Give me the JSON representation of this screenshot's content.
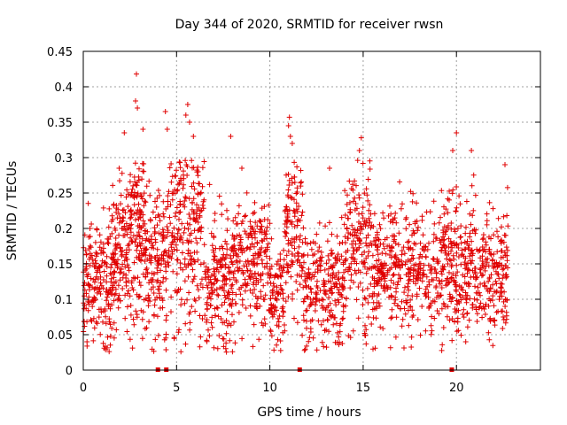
{
  "chart_data": {
    "type": "scatter",
    "title": "Day 344 of 2020, SRMTID for receiver rwsn",
    "xlabel": "GPS time / hours",
    "ylabel": "SRMTID / TECUs",
    "xlim": [
      0,
      24.5
    ],
    "ylim": [
      0,
      0.45
    ],
    "x_ticks": [
      0,
      5,
      10,
      15,
      20
    ],
    "x_tick_labels": [
      "0",
      "5",
      "10",
      "15",
      "20"
    ],
    "y_ticks": [
      0,
      0.05,
      0.1,
      0.15,
      0.2,
      0.25,
      0.3,
      0.35,
      0.4,
      0.45
    ],
    "y_tick_labels": [
      "0",
      "0.05",
      "0.1",
      "0.15",
      "0.2",
      "0.25",
      "0.3",
      "0.35",
      "0.4",
      "0.45"
    ],
    "grid": true,
    "marker": "plus",
    "color": "#e00000",
    "series": [
      {
        "name": "SRMTID",
        "points_note": "dense cloud of ~3000 points from 0 to 22.8 h, mostly 0.05–0.25 TECU",
        "density_profile": [
          {
            "x_from": 0.0,
            "x_to": 1.5,
            "center": 0.12,
            "spread": 0.045,
            "n": 180
          },
          {
            "x_from": 1.5,
            "x_to": 2.5,
            "center": 0.16,
            "spread": 0.05,
            "n": 140
          },
          {
            "x_from": 2.5,
            "x_to": 3.3,
            "center": 0.19,
            "spread": 0.07,
            "n": 130
          },
          {
            "x_from": 3.3,
            "x_to": 4.5,
            "center": 0.15,
            "spread": 0.05,
            "n": 150
          },
          {
            "x_from": 4.5,
            "x_to": 6.5,
            "center": 0.19,
            "spread": 0.065,
            "n": 230
          },
          {
            "x_from": 6.5,
            "x_to": 8.0,
            "center": 0.12,
            "spread": 0.045,
            "n": 170
          },
          {
            "x_from": 8.0,
            "x_to": 10.0,
            "center": 0.15,
            "spread": 0.045,
            "n": 220
          },
          {
            "x_from": 10.0,
            "x_to": 10.8,
            "center": 0.1,
            "spread": 0.04,
            "n": 90
          },
          {
            "x_from": 10.8,
            "x_to": 11.8,
            "center": 0.2,
            "spread": 0.06,
            "n": 120
          },
          {
            "x_from": 11.8,
            "x_to": 14.0,
            "center": 0.12,
            "spread": 0.04,
            "n": 230
          },
          {
            "x_from": 14.0,
            "x_to": 15.5,
            "center": 0.18,
            "spread": 0.055,
            "n": 160
          },
          {
            "x_from": 15.5,
            "x_to": 19.5,
            "center": 0.14,
            "spread": 0.045,
            "n": 420
          },
          {
            "x_from": 19.5,
            "x_to": 21.0,
            "center": 0.15,
            "spread": 0.05,
            "n": 180
          },
          {
            "x_from": 21.0,
            "x_to": 22.8,
            "center": 0.14,
            "spread": 0.045,
            "n": 190
          }
        ],
        "peaks": [
          {
            "x": 2.85,
            "y": 0.418
          },
          {
            "x": 2.8,
            "y": 0.38
          },
          {
            "x": 2.9,
            "y": 0.37
          },
          {
            "x": 4.4,
            "y": 0.365
          },
          {
            "x": 5.6,
            "y": 0.375
          },
          {
            "x": 5.5,
            "y": 0.36
          },
          {
            "x": 5.7,
            "y": 0.35
          },
          {
            "x": 5.9,
            "y": 0.33
          },
          {
            "x": 4.5,
            "y": 0.34
          },
          {
            "x": 2.2,
            "y": 0.335
          },
          {
            "x": 3.2,
            "y": 0.34
          },
          {
            "x": 7.9,
            "y": 0.33
          },
          {
            "x": 11.05,
            "y": 0.357
          },
          {
            "x": 11.0,
            "y": 0.345
          },
          {
            "x": 11.1,
            "y": 0.33
          },
          {
            "x": 11.2,
            "y": 0.32
          },
          {
            "x": 14.9,
            "y": 0.328
          },
          {
            "x": 14.8,
            "y": 0.31
          },
          {
            "x": 20.0,
            "y": 0.335
          },
          {
            "x": 20.8,
            "y": 0.31
          },
          {
            "x": 19.8,
            "y": 0.31
          },
          {
            "x": 22.6,
            "y": 0.29
          },
          {
            "x": 13.2,
            "y": 0.285
          },
          {
            "x": 8.5,
            "y": 0.285
          }
        ],
        "zero_markers_x": [
          4.0,
          4.45,
          11.6,
          19.75
        ]
      }
    ]
  }
}
